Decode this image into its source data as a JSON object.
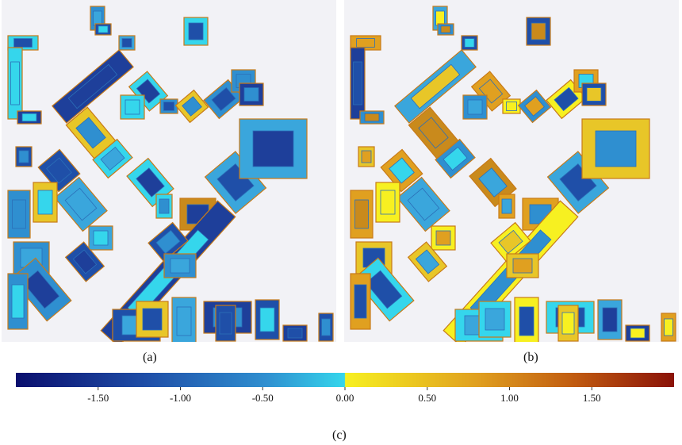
{
  "captions": {
    "a": "(a)",
    "b": "(b)",
    "c": "(c)"
  },
  "chart_data": {
    "type": "heatmap",
    "colorbar": {
      "range": [
        -2.0,
        2.0
      ],
      "ticks": [
        -1.5,
        -1.0,
        -0.5,
        0.0,
        0.5,
        1.0,
        1.5
      ],
      "tick_labels": [
        "-1.50",
        "-1.00",
        "-0.50",
        "0.00",
        "0.50",
        "1.00",
        "1.50"
      ],
      "negative_colors": [
        "#0a0f6e",
        "#1f4fa8",
        "#2f8fd0",
        "#35d6ec"
      ],
      "positive_colors": [
        "#f7f021",
        "#e0a020",
        "#c05a10",
        "#8a1208"
      ]
    },
    "panels": [
      {
        "id": "a",
        "label": "(a)",
        "dominant": "negative"
      },
      {
        "id": "b",
        "label": "(b)",
        "dominant": "mixed"
      }
    ]
  }
}
